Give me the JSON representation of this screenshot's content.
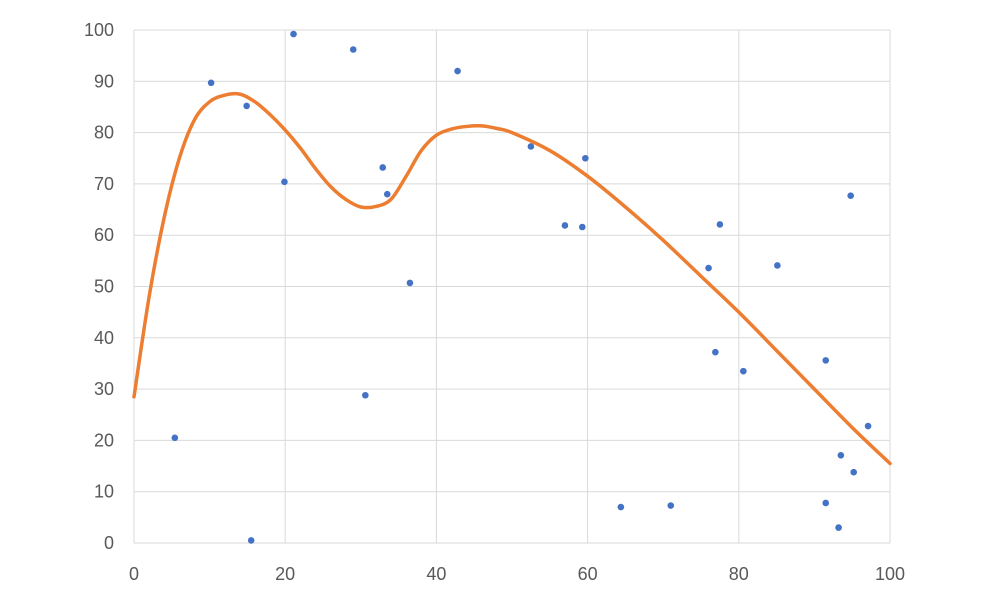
{
  "chart_data": {
    "type": "scatter",
    "title": "",
    "xlabel": "",
    "ylabel": "",
    "xlim": [
      0,
      100
    ],
    "ylim": [
      0,
      100
    ],
    "x_ticks": [
      0,
      20,
      40,
      60,
      80,
      100
    ],
    "y_ticks": [
      0,
      10,
      20,
      30,
      40,
      50,
      60,
      70,
      80,
      90,
      100
    ],
    "x_tick_labels": [
      "0",
      "20",
      "40",
      "60",
      "80",
      "100"
    ],
    "y_tick_labels": [
      "0",
      "10",
      "20",
      "30",
      "40",
      "50",
      "60",
      "70",
      "80",
      "90",
      "100"
    ],
    "grid": true,
    "legend": "none",
    "series": [
      {
        "kind": "scatter",
        "color": "#4472c4",
        "points": [
          [
            5.4,
            20.5
          ],
          [
            10.2,
            89.7
          ],
          [
            14.9,
            85.2
          ],
          [
            15.5,
            0.5
          ],
          [
            19.9,
            70.4
          ],
          [
            21.1,
            99.2
          ],
          [
            29.0,
            96.2
          ],
          [
            30.6,
            28.8
          ],
          [
            32.9,
            73.2
          ],
          [
            33.5,
            68.0
          ],
          [
            36.5,
            50.7
          ],
          [
            42.8,
            92.0
          ],
          [
            52.5,
            77.3
          ],
          [
            57.0,
            61.9
          ],
          [
            59.3,
            61.6
          ],
          [
            59.7,
            75.0
          ],
          [
            64.4,
            7.0
          ],
          [
            71.0,
            7.3
          ],
          [
            76.0,
            53.6
          ],
          [
            76.9,
            37.2
          ],
          [
            77.5,
            62.1
          ],
          [
            80.6,
            33.5
          ],
          [
            85.1,
            54.1
          ],
          [
            91.5,
            35.6
          ],
          [
            91.5,
            7.8
          ],
          [
            93.2,
            3.0
          ],
          [
            93.5,
            17.1
          ],
          [
            94.8,
            67.7
          ],
          [
            95.2,
            13.8
          ],
          [
            97.1,
            22.8
          ]
        ]
      },
      {
        "kind": "line",
        "smooth": true,
        "color": "#ed7d31",
        "x": [
          0,
          2,
          4,
          6,
          8,
          10,
          12,
          14,
          16,
          18,
          20,
          22,
          24,
          26,
          28,
          30,
          32,
          34,
          36,
          38,
          40,
          42,
          44,
          46,
          48,
          50,
          55,
          60,
          65,
          70,
          75,
          80,
          85,
          90,
          95,
          100
        ],
        "y": [
          28.5,
          48,
          63.5,
          75,
          82.5,
          86,
          87.3,
          87.5,
          86,
          83.5,
          80.5,
          77,
          73,
          69.5,
          67,
          65.5,
          65.6,
          67,
          71.5,
          76.5,
          79.5,
          80.7,
          81.2,
          81.3,
          80.8,
          80,
          76.5,
          71.5,
          65.5,
          59,
          52,
          45,
          37.5,
          30,
          22.5,
          15.5
        ]
      }
    ]
  }
}
